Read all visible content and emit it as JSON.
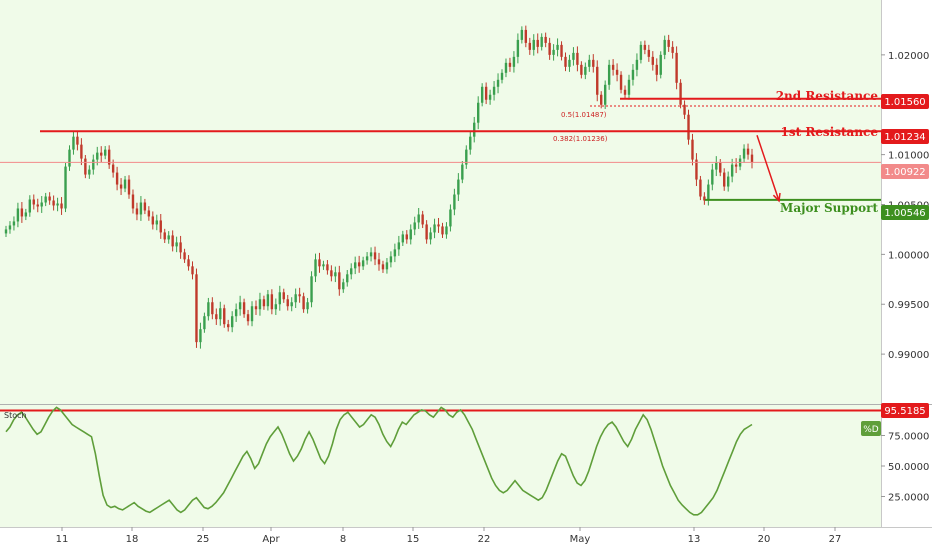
{
  "chart_data": [
    {
      "type": "candlestick",
      "ylim": [
        0.985,
        1.0255
      ],
      "yticks": [
        "1.02000",
        "1.01500",
        "1.01000",
        "1.00500",
        "1.00000",
        "0.99500",
        "0.99000"
      ],
      "xticks": [
        "11",
        "18",
        "25",
        "Apr",
        "8",
        "15",
        "22",
        "May",
        "13",
        "20",
        "27"
      ],
      "last_price": "1.00922",
      "ohlc_close": [
        1.0025,
        1.0029,
        1.0033,
        1.0046,
        1.0038,
        1.0042,
        1.0055,
        1.005,
        1.0048,
        1.0052,
        1.0058,
        1.0054,
        1.0049,
        1.0051,
        1.0046,
        1.0088,
        1.0105,
        1.0118,
        1.011,
        1.0096,
        1.008,
        1.0085,
        1.0095,
        1.0102,
        1.0099,
        1.0105,
        1.009,
        1.0082,
        1.007,
        1.0066,
        1.0075,
        1.006,
        1.0046,
        1.004,
        1.0052,
        1.0044,
        1.0038,
        1.003,
        1.0034,
        1.0022,
        1.0015,
        1.0019,
        1.0008,
        1.0012,
        1.0002,
        0.9995,
        0.9988,
        0.998,
        0.9912,
        0.9925,
        0.9938,
        0.9952,
        0.994,
        0.9935,
        0.9946,
        0.993,
        0.9927,
        0.9938,
        0.9945,
        0.9952,
        0.994,
        0.9933,
        0.9948,
        0.9945,
        0.9955,
        0.9948,
        0.996,
        0.9945,
        0.995,
        0.9962,
        0.9955,
        0.9948,
        0.9952,
        0.996,
        0.9958,
        0.9945,
        0.9952,
        0.9978,
        0.9995,
        0.9988,
        0.999,
        0.9984,
        0.9978,
        0.9982,
        0.9965,
        0.9972,
        0.998,
        0.9986,
        0.9992,
        0.9988,
        0.9994,
        0.9998,
        1.0002,
        0.9995,
        0.999,
        0.9985,
        0.9992,
        0.9998,
        1.0005,
        1.0012,
        1.002,
        1.0015,
        1.0025,
        1.0032,
        1.004,
        1.003,
        1.0015,
        1.0022,
        1.003,
        1.0028,
        1.002,
        1.0028,
        1.0045,
        1.006,
        1.0075,
        1.009,
        1.0105,
        1.0118,
        1.0132,
        1.0152,
        1.0168,
        1.0155,
        1.016,
        1.0168,
        1.0175,
        1.0182,
        1.0192,
        1.0188,
        1.0198,
        1.0215,
        1.0225,
        1.0212,
        1.0205,
        1.0215,
        1.0208,
        1.0218,
        1.0212,
        1.02,
        1.0205,
        1.021,
        1.0198,
        1.0188,
        1.0195,
        1.0202,
        1.019,
        1.018,
        1.0188,
        1.0195,
        1.0188,
        1.016,
        1.015,
        1.017,
        1.019,
        1.0185,
        1.018,
        1.0165,
        1.016,
        1.0175,
        1.0185,
        1.0195,
        1.021,
        1.0205,
        1.0198,
        1.019,
        1.018,
        1.02,
        1.0215,
        1.0208,
        1.0202,
        1.0172,
        1.015,
        1.014,
        1.0115,
        1.0095,
        1.0075,
        1.0058,
        1.0054,
        1.007,
        1.0085,
        1.0092,
        1.0082,
        1.0068,
        1.0078,
        1.009,
        1.0088,
        1.0096,
        1.0106,
        1.01,
        1.0092
      ],
      "stochastic": {
        "label": "Stoch",
        "series_label": "%D",
        "level": "95.5185",
        "ylim": [
          0,
          100
        ],
        "yticks": [
          "75.0000",
          "50.0000",
          "25.0000"
        ],
        "values": [
          78,
          82,
          88,
          92,
          94,
          90,
          85,
          80,
          76,
          78,
          84,
          90,
          95,
          98,
          96,
          92,
          88,
          84,
          82,
          80,
          78,
          76,
          74,
          60,
          42,
          26,
          18,
          16,
          17,
          15,
          14,
          16,
          18,
          20,
          17,
          15,
          13,
          12,
          14,
          16,
          18,
          20,
          22,
          18,
          14,
          12,
          14,
          18,
          22,
          24,
          20,
          16,
          15,
          17,
          20,
          24,
          28,
          34,
          40,
          46,
          52,
          58,
          62,
          56,
          48,
          52,
          60,
          68,
          74,
          78,
          82,
          76,
          68,
          60,
          54,
          58,
          64,
          72,
          78,
          72,
          64,
          56,
          52,
          58,
          68,
          80,
          88,
          92,
          94,
          90,
          86,
          82,
          84,
          88,
          92,
          90,
          84,
          76,
          70,
          66,
          72,
          80,
          86,
          84,
          88,
          92,
          94,
          96,
          95,
          92,
          90,
          94,
          98,
          96,
          92,
          90,
          94,
          96,
          92,
          86,
          80,
          72,
          64,
          56,
          48,
          40,
          34,
          30,
          28,
          30,
          34,
          38,
          34,
          30,
          28,
          26,
          24,
          22,
          24,
          30,
          38,
          46,
          54,
          60,
          58,
          50,
          42,
          36,
          34,
          38,
          46,
          56,
          66,
          74,
          80,
          84,
          86,
          82,
          76,
          70,
          66,
          72,
          80,
          86,
          92,
          88,
          80,
          70,
          60,
          50,
          42,
          34,
          28,
          22,
          18,
          15,
          12,
          10,
          10,
          12,
          16,
          20,
          24,
          30,
          38,
          46,
          54,
          62,
          70,
          76,
          80,
          82,
          84
        ]
      }
    }
  ],
  "annotations": {
    "resistance2": {
      "label": "2nd Resistance",
      "value": "1.01560"
    },
    "resistance1": {
      "label": "1st Resistance",
      "value": "1.01234"
    },
    "support": {
      "label": "Major Support",
      "value": "1.00546"
    },
    "fib_05": "0.5(1.01487)",
    "fib_0382": "0.382(1.01236)"
  },
  "colors": {
    "background": "#f0fbe9",
    "up": "#3a9f4e",
    "down": "#c0392b",
    "resistance": "#e31a1c",
    "support": "#3d8f1f",
    "stoch_line": "#5f9e3a",
    "last_price": "#f28a8a"
  }
}
